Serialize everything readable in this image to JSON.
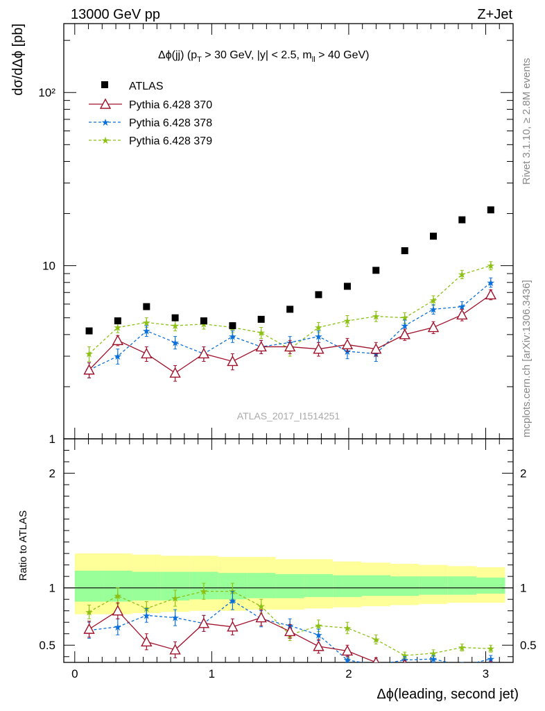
{
  "header": {
    "left": "13000 GeV pp",
    "right": "Z+Jet"
  },
  "side_labels": {
    "rivet": "Rivet 3.1.10, ≥ 2.8M events",
    "mcplots": "mcplots.cern.ch [arXiv:1306.3436]"
  },
  "chart_data": [
    {
      "type": "scatter",
      "title_main": "Δϕ(jj) (p",
      "title_sub1": "T",
      "title_mid": " > 30 GeV, |y| < 2.5, m",
      "title_sub2": "ll",
      "title_end": " > 40 GeV)",
      "ylabel": "dσ/dΔϕ [pb]",
      "yscale": "log",
      "ylim": [
        1,
        250
      ],
      "xlim": [
        -0.08,
        3.2
      ],
      "ytick_labels": [
        "1",
        "10",
        "10²"
      ],
      "watermark": "ATLAS_2017_I1514251",
      "x": [
        0.105,
        0.314,
        0.524,
        0.733,
        0.942,
        1.152,
        1.361,
        1.571,
        1.78,
        1.99,
        2.199,
        2.409,
        2.618,
        2.827,
        3.037
      ],
      "series": [
        {
          "name": "ATLAS",
          "color": "#000000",
          "marker": "square",
          "values": [
            4.2,
            4.8,
            5.8,
            5.0,
            4.8,
            4.5,
            4.9,
            5.6,
            6.8,
            7.6,
            9.4,
            12.2,
            14.8,
            18.4,
            21.0
          ]
        },
        {
          "name": "Pythia 6.428 370",
          "color": "#a0102a",
          "marker": "triangle",
          "line": "solid",
          "values": [
            2.5,
            3.7,
            3.1,
            2.4,
            3.1,
            2.8,
            3.4,
            3.4,
            3.3,
            3.5,
            3.3,
            4.0,
            4.4,
            5.2,
            6.8
          ],
          "errors": [
            0.25,
            0.25,
            0.3,
            0.25,
            0.3,
            0.3,
            0.3,
            0.3,
            0.3,
            0.3,
            0.3,
            0.3,
            0.35,
            0.4,
            0.45
          ]
        },
        {
          "name": "Pythia 6.428 378",
          "color": "#0a6fd8",
          "marker": "star",
          "line": "dashed",
          "values": [
            2.5,
            3.0,
            4.2,
            3.6,
            3.1,
            3.9,
            3.4,
            3.6,
            3.9,
            3.2,
            3.1,
            4.5,
            5.6,
            5.8,
            8.0
          ],
          "errors": [
            0.25,
            0.3,
            0.3,
            0.3,
            0.3,
            0.3,
            0.3,
            0.3,
            0.3,
            0.3,
            0.3,
            0.35,
            0.35,
            0.4,
            0.5
          ]
        },
        {
          "name": "Pythia 6.428 379",
          "color": "#8cc014",
          "marker": "star",
          "line": "dashed",
          "values": [
            3.1,
            4.4,
            4.7,
            4.5,
            4.6,
            4.4,
            4.1,
            3.3,
            4.4,
            4.8,
            5.1,
            5.0,
            6.3,
            8.9,
            10.0
          ],
          "errors": [
            0.3,
            0.3,
            0.3,
            0.3,
            0.3,
            0.3,
            0.3,
            0.3,
            0.3,
            0.35,
            0.35,
            0.35,
            0.4,
            0.5,
            0.55
          ]
        }
      ]
    },
    {
      "type": "scatter",
      "ylabel": "Ratio to ATLAS",
      "xlabel": "Δϕ(leading, second jet)",
      "ylim": [
        0.35,
        2.3
      ],
      "xlim": [
        -0.08,
        3.2
      ],
      "ytick_labels": [
        "0.5",
        "1",
        "2"
      ],
      "xtick_labels": [
        "0",
        "1",
        "2",
        "3"
      ],
      "band_colors": {
        "outer": "#ffff99",
        "inner": "#99ff99"
      },
      "band_edges": [
        0.0,
        0.209,
        0.419,
        0.628,
        0.838,
        1.047,
        1.257,
        1.466,
        1.676,
        1.885,
        2.094,
        2.304,
        2.513,
        2.723,
        2.932,
        3.142
      ],
      "band_outer": [
        [
          0.77,
          1.3
        ],
        [
          0.77,
          1.3
        ],
        [
          0.78,
          1.29
        ],
        [
          0.79,
          1.28
        ],
        [
          0.8,
          1.28
        ],
        [
          0.8,
          1.27
        ],
        [
          0.81,
          1.27
        ],
        [
          0.81,
          1.25
        ],
        [
          0.82,
          1.25
        ],
        [
          0.83,
          1.23
        ],
        [
          0.84,
          1.22
        ],
        [
          0.85,
          1.21
        ],
        [
          0.86,
          1.2
        ],
        [
          0.87,
          1.19
        ],
        [
          0.87,
          1.18
        ]
      ],
      "band_inner": [
        [
          0.88,
          1.15
        ],
        [
          0.88,
          1.15
        ],
        [
          0.89,
          1.14
        ],
        [
          0.89,
          1.14
        ],
        [
          0.9,
          1.14
        ],
        [
          0.9,
          1.13
        ],
        [
          0.91,
          1.13
        ],
        [
          0.91,
          1.12
        ],
        [
          0.92,
          1.12
        ],
        [
          0.92,
          1.11
        ],
        [
          0.93,
          1.11
        ],
        [
          0.93,
          1.1
        ],
        [
          0.94,
          1.1
        ],
        [
          0.94,
          1.1
        ],
        [
          0.95,
          1.09
        ]
      ],
      "x": [
        0.105,
        0.314,
        0.524,
        0.733,
        0.942,
        1.152,
        1.361,
        1.571,
        1.78,
        1.99,
        2.199,
        2.409,
        2.618,
        2.827,
        3.037
      ],
      "series": [
        {
          "name": "Pythia 6.428 370",
          "color": "#a0102a",
          "marker": "triangle",
          "line": "solid",
          "values": [
            0.64,
            0.8,
            0.53,
            0.46,
            0.69,
            0.66,
            0.74,
            0.62,
            0.49,
            0.45,
            0.35,
            0.33,
            0.3,
            0.28,
            0.32
          ],
          "errors": [
            0.07,
            0.07,
            0.07,
            0.07,
            0.07,
            0.07,
            0.07,
            0.06,
            0.06,
            0.05,
            0.04,
            0.03,
            0.03,
            0.03,
            0.03
          ]
        },
        {
          "name": "Pythia 6.428 378",
          "color": "#0a6fd8",
          "marker": "star",
          "line": "dashed",
          "values": [
            0.63,
            0.66,
            0.76,
            0.74,
            0.69,
            0.89,
            0.73,
            0.67,
            0.59,
            0.37,
            0.33,
            0.37,
            0.38,
            0.32,
            0.38
          ],
          "errors": [
            0.07,
            0.07,
            0.06,
            0.07,
            0.07,
            0.08,
            0.07,
            0.06,
            0.05,
            0.04,
            0.03,
            0.03,
            0.03,
            0.03,
            0.03
          ]
        },
        {
          "name": "Pythia 6.428 379",
          "color": "#8cc014",
          "marker": "star",
          "line": "dashed",
          "values": [
            0.79,
            0.93,
            0.82,
            0.91,
            0.97,
            0.97,
            0.84,
            0.59,
            0.67,
            0.65,
            0.55,
            0.41,
            0.43,
            0.48,
            0.47
          ],
          "errors": [
            0.06,
            0.07,
            0.06,
            0.07,
            0.07,
            0.07,
            0.06,
            0.05,
            0.05,
            0.05,
            0.04,
            0.03,
            0.03,
            0.03,
            0.03
          ]
        }
      ]
    }
  ]
}
